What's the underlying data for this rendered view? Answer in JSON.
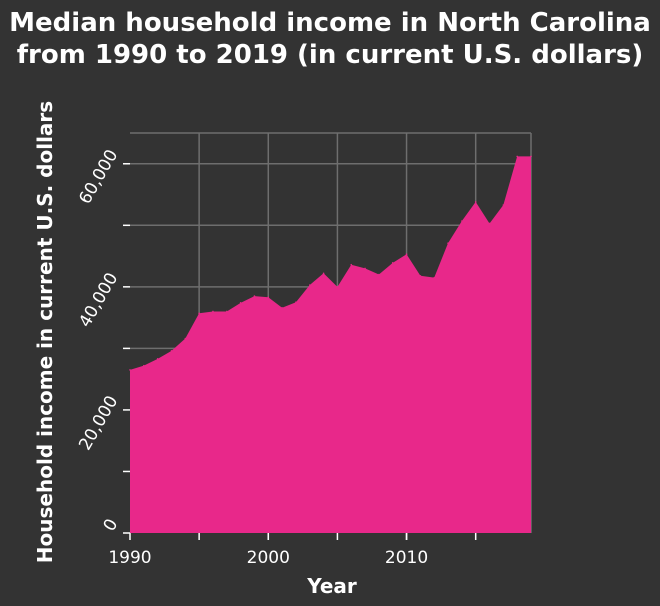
{
  "chart_data": {
    "type": "area",
    "title_line1": "Median household income in North Carolina",
    "title_line2": "from 1990 to 2019 (in current U.S. dollars)",
    "xlabel": "Year",
    "ylabel": "Household income in current U.S. dollars",
    "xlim": [
      1990,
      2019
    ],
    "ylim": [
      0,
      65000
    ],
    "x_ticks": [
      {
        "value": 1990,
        "label": "1990"
      },
      {
        "value": 2000,
        "label": "2000"
      },
      {
        "value": 2010,
        "label": "2010"
      }
    ],
    "y_ticks": [
      {
        "value": 0,
        "label": "0"
      },
      {
        "value": 20000,
        "label": "20,000"
      },
      {
        "value": 40000,
        "label": "40,000"
      },
      {
        "value": 60000,
        "label": "60,000"
      }
    ],
    "x_grid": [
      1995,
      2000,
      2005,
      2010,
      2015
    ],
    "y_grid": [
      10000,
      20000,
      30000,
      40000,
      50000,
      60000
    ],
    "grid": true,
    "colors": {
      "background": "#333333",
      "fill": "#e8288a",
      "grid": "#6e6e6e",
      "text": "#ffffff"
    },
    "x": [
      1990,
      1991,
      1992,
      1993,
      1994,
      1995,
      1996,
      1997,
      1998,
      1999,
      2000,
      2001,
      2002,
      2003,
      2004,
      2005,
      2006,
      2007,
      2008,
      2009,
      2010,
      2011,
      2012,
      2013,
      2014,
      2015,
      2016,
      2017,
      2018,
      2019
    ],
    "values": [
      26500,
      27200,
      28300,
      29600,
      31600,
      35700,
      36000,
      36000,
      37400,
      38500,
      38300,
      36600,
      37500,
      40300,
      42200,
      40000,
      43600,
      43000,
      42000,
      43900,
      45300,
      41800,
      41500,
      47100,
      50700,
      53800,
      50300,
      53300,
      61200,
      61200
    ]
  }
}
